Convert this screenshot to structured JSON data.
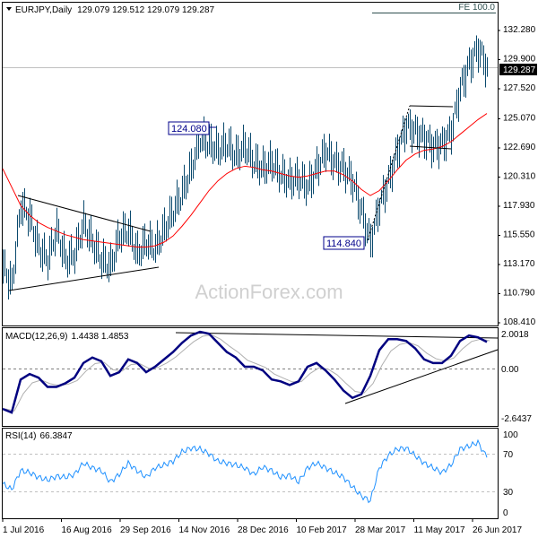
{
  "header": {
    "symbol": "EURJPY,Daily",
    "ohlc": "129.079 129.512 129.079 129.287",
    "fe_label": "FE 100.0"
  },
  "watermark": "ActionForex.com",
  "chart_data": [
    {
      "type": "bar",
      "title": "EURJPY,Daily",
      "ylim": [
        108.41,
        132.28
      ],
      "y_ticks": [
        "132.280",
        "129.900",
        "127.520",
        "125.070",
        "122.690",
        "120.310",
        "117.930",
        "115.550",
        "113.170",
        "110.790",
        "108.410"
      ],
      "current_price": "129.287",
      "annotations": [
        "124.080",
        "114.840"
      ],
      "x_ticks": [
        "1 Jul 2016",
        "16 Aug 2016",
        "29 Sep 2016",
        "14 Nov 2016",
        "28 Dec 2016",
        "10 Feb 2017",
        "28 Mar 2017",
        "11 May 2017",
        "26 Jun 2017"
      ],
      "weekly_close": [
        113,
        111.5,
        118,
        117,
        114.5,
        113.5,
        116,
        113.5,
        114,
        116.5,
        115,
        113.5,
        113,
        115.5,
        116,
        114,
        115,
        114.5,
        116,
        117.5,
        119,
        121,
        123.5,
        123,
        122.5,
        123,
        122,
        122.8,
        121.5,
        121,
        121.5,
        120.5,
        120,
        120.2,
        119.5,
        121,
        122.5,
        121.5,
        121,
        120,
        117.5,
        115,
        118,
        120,
        122.5,
        124.5,
        124,
        123.5,
        122.8,
        123,
        124,
        127.5,
        129.5,
        130.8,
        129.3
      ],
      "moving_average": [
        121,
        119.5,
        118,
        117.2,
        116.6,
        116.2,
        115.9,
        115.6,
        115.4,
        115.2,
        115.1,
        115,
        114.9,
        114.8,
        114.7,
        114.6,
        114.6,
        114.7,
        115,
        115.5,
        116.3,
        117.2,
        118.2,
        119.2,
        120,
        120.6,
        121,
        121.2,
        121.1,
        120.9,
        120.8,
        120.6,
        120.4,
        120.3,
        120.4,
        120.6,
        120.8,
        120.8,
        120.5,
        120,
        119.3,
        118.8,
        119.2,
        120,
        120.9,
        121.7,
        122.2,
        122.5,
        122.6,
        122.8,
        123.2,
        123.8,
        124.4,
        125,
        125.5
      ]
    },
    {
      "type": "line",
      "title": "MACD(12,26,9)",
      "values_label": "1.4438 1.4853",
      "ylim": [
        -2.6437,
        2.0018
      ],
      "y_ticks": [
        "2.0018",
        "0.00",
        "-2.6437"
      ],
      "macd": [
        -2.2,
        -2.4,
        -0.6,
        -0.3,
        -0.5,
        -1.0,
        -1.0,
        -0.8,
        -0.5,
        0.3,
        0.6,
        0.4,
        -0.4,
        -0.2,
        0.5,
        0.3,
        -0.2,
        0.1,
        0.5,
        0.9,
        1.4,
        1.8,
        2.0,
        1.9,
        1.4,
        0.9,
        0.6,
        0.1,
        0.1,
        -0.1,
        -0.6,
        -0.7,
        -0.9,
        -0.7,
        0.1,
        0.3,
        -0.1,
        -0.6,
        -1.2,
        -1.6,
        -1.4,
        -0.4,
        1.0,
        1.6,
        1.6,
        1.5,
        1.1,
        0.5,
        0.3,
        0.3,
        0.7,
        1.5,
        1.8,
        1.7,
        1.45
      ]
    },
    {
      "type": "line",
      "title": "RSI(14)",
      "values_label": "66.3847",
      "ylim": [
        0,
        100
      ],
      "y_ticks": [
        "100",
        "70",
        "30",
        "0"
      ],
      "rsi": [
        38,
        32,
        52,
        50,
        45,
        42,
        46,
        45,
        48,
        60,
        55,
        52,
        40,
        48,
        60,
        52,
        45,
        55,
        58,
        62,
        72,
        76,
        75,
        70,
        62,
        60,
        58,
        55,
        48,
        56,
        52,
        45,
        47,
        40,
        55,
        60,
        55,
        50,
        45,
        35,
        25,
        20,
        55,
        68,
        75,
        76,
        68,
        60,
        55,
        50,
        58,
        75,
        78,
        82,
        66
      ]
    }
  ],
  "colors": {
    "bars": "#0b4a6e",
    "ma": "#ff0000",
    "macd": "#000080",
    "signal": "#b0b0b0",
    "rsi": "#1e90ff",
    "label_box": "#00008b"
  }
}
